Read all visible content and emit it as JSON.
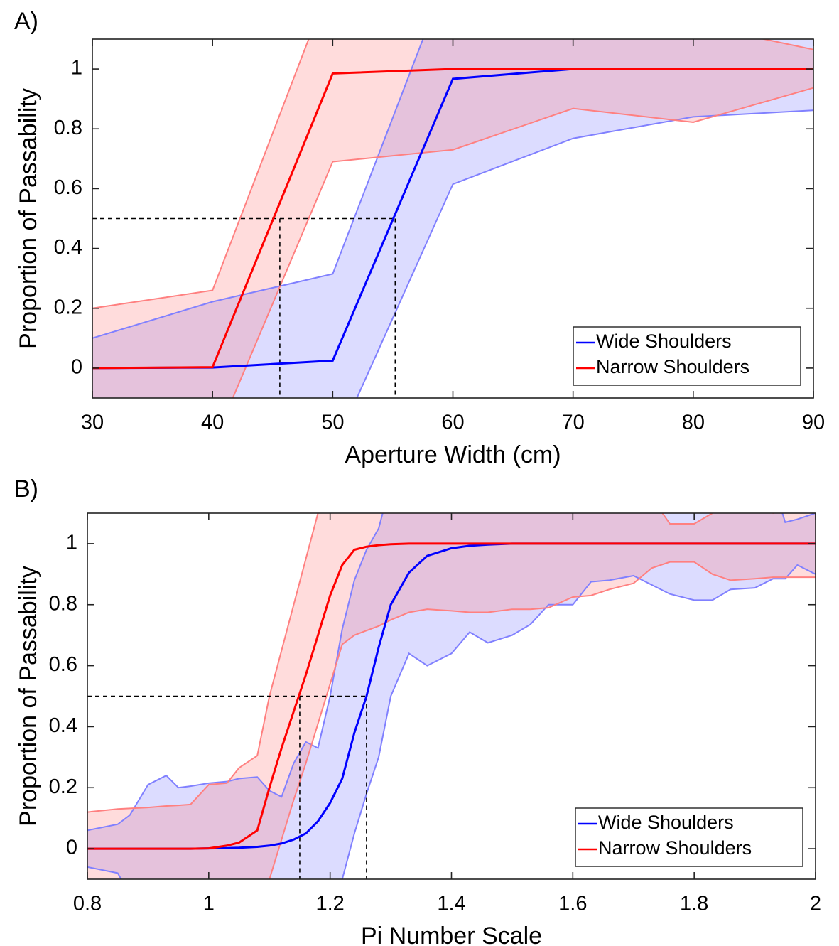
{
  "chart_data": [
    {
      "type": "line",
      "panel_label": "A)",
      "x_label": "Aperture Width (cm)",
      "y_label": "Proportion of Passability",
      "x": [
        30,
        40,
        50,
        60,
        70,
        80,
        90
      ],
      "series": [
        {
          "name": "Wide Shoulders",
          "color": "#0000ff",
          "band_color": "#8080ff",
          "values": [
            0,
            0.002,
            0.025,
            0.967,
            1,
            1,
            1
          ],
          "band_upper": [
            0.1,
            0.222,
            0.315,
            1.36,
            1.5,
            1.5,
            1.5
          ],
          "band_lower": [
            -0.3,
            -0.3,
            -0.28,
            0.615,
            0.768,
            0.84,
            0.862
          ]
        },
        {
          "name": "Narrow Shoulders",
          "color": "#ff0000",
          "band_color": "#ff8080",
          "values": [
            0,
            0.003,
            0.985,
            1,
            1,
            1,
            1
          ],
          "band_upper": [
            0.2,
            0.26,
            1.31,
            1.5,
            1.5,
            1.15,
            1.065
          ],
          "band_lower": [
            -0.4,
            -0.26,
            0.69,
            0.73,
            0.868,
            0.822,
            0.937
          ]
        }
      ],
      "reference_lines": {
        "y": 0.5,
        "x": [
          45.6,
          55.2
        ]
      },
      "xlim": [
        30,
        90
      ],
      "xticks": [
        30,
        40,
        50,
        60,
        70,
        80,
        90
      ],
      "ylim": [
        -0.1,
        1.1
      ],
      "yticks": [
        0,
        0.2,
        0.4,
        0.6,
        0.8,
        1
      ],
      "grid": false,
      "legend": "lower right"
    },
    {
      "type": "line",
      "panel_label": "B)",
      "x_label": "Pi Number Scale",
      "y_label": "Proportion of Passability",
      "x": [
        0.8,
        0.85,
        0.87,
        0.9,
        0.93,
        0.95,
        0.97,
        1.0,
        1.03,
        1.05,
        1.08,
        1.1,
        1.12,
        1.14,
        1.16,
        1.18,
        1.2,
        1.22,
        1.24,
        1.26,
        1.28,
        1.3,
        1.33,
        1.36,
        1.4,
        1.43,
        1.46,
        1.5,
        1.53,
        1.56,
        1.6,
        1.63,
        1.66,
        1.7,
        1.73,
        1.76,
        1.8,
        1.83,
        1.86,
        1.9,
        1.93,
        1.95,
        1.97,
        2.0
      ],
      "series": [
        {
          "name": "Wide Shoulders",
          "color": "#0000ff",
          "band_color": "#8080ff",
          "values": [
            0,
            0,
            0,
            0,
            0,
            0,
            0,
            0.001,
            0.002,
            0.003,
            0.006,
            0.01,
            0.017,
            0.03,
            0.05,
            0.09,
            0.15,
            0.23,
            0.38,
            0.5,
            0.66,
            0.8,
            0.905,
            0.96,
            0.985,
            0.993,
            0.997,
            1,
            1,
            1,
            1,
            1,
            1,
            1,
            1,
            1,
            1,
            1,
            1,
            1,
            1,
            1,
            1,
            1
          ],
          "band_upper": [
            0.06,
            0.08,
            0.11,
            0.21,
            0.24,
            0.2,
            0.205,
            0.215,
            0.22,
            0.23,
            0.235,
            0.19,
            0.17,
            0.28,
            0.35,
            0.33,
            0.5,
            0.72,
            0.88,
            0.98,
            1.05,
            1.2,
            1.2,
            1.2,
            1.2,
            1.2,
            1.2,
            1.2,
            1.2,
            1.2,
            1.2,
            1.2,
            1.2,
            1.2,
            1.2,
            1.2,
            1.2,
            1.2,
            1.2,
            1.2,
            1.2,
            1.07,
            1.08,
            1.1
          ],
          "band_lower": [
            -0.06,
            -0.08,
            -0.15,
            -0.15,
            -0.15,
            -0.15,
            -0.15,
            -0.15,
            -0.15,
            -0.15,
            -0.15,
            -0.15,
            -0.15,
            -0.15,
            -0.15,
            -0.15,
            -0.15,
            -0.1,
            0.05,
            0.18,
            0.3,
            0.5,
            0.64,
            0.6,
            0.64,
            0.71,
            0.675,
            0.7,
            0.735,
            0.8,
            0.8,
            0.875,
            0.88,
            0.895,
            0.865,
            0.835,
            0.815,
            0.815,
            0.85,
            0.855,
            0.885,
            0.885,
            0.93,
            0.9
          ]
        },
        {
          "name": "Narrow Shoulders",
          "color": "#ff0000",
          "band_color": "#ff8080",
          "values": [
            0,
            0,
            0,
            0,
            0,
            0,
            0,
            0.001,
            0.01,
            0.02,
            0.06,
            0.2,
            0.33,
            0.45,
            0.57,
            0.7,
            0.83,
            0.93,
            0.98,
            0.99,
            0.995,
            0.998,
            1,
            1,
            1,
            1,
            1,
            1,
            1,
            1,
            1,
            1,
            1,
            1,
            1,
            1,
            1,
            1,
            1,
            1,
            1,
            1,
            1,
            1
          ],
          "band_upper": [
            0.12,
            0.13,
            0.132,
            0.135,
            0.14,
            0.142,
            0.145,
            0.21,
            0.215,
            0.265,
            0.305,
            0.5,
            0.65,
            0.8,
            0.95,
            1.1,
            1.25,
            1.3,
            1.3,
            1.3,
            1.3,
            1.3,
            1.3,
            1.3,
            1.3,
            1.3,
            1.3,
            1.3,
            1.3,
            1.3,
            1.3,
            1.3,
            1.3,
            1.3,
            1.15,
            1.065,
            1.065,
            1.1,
            1.15,
            1.15,
            1.1,
            1.11,
            1.11,
            1.1
          ],
          "band_lower": [
            -0.15,
            -0.15,
            -0.15,
            -0.15,
            -0.15,
            -0.15,
            -0.15,
            -0.15,
            -0.15,
            -0.15,
            -0.15,
            -0.1,
            0.03,
            0.16,
            0.28,
            0.41,
            0.54,
            0.67,
            0.7,
            0.715,
            0.73,
            0.75,
            0.775,
            0.785,
            0.78,
            0.775,
            0.775,
            0.785,
            0.785,
            0.79,
            0.825,
            0.83,
            0.85,
            0.87,
            0.92,
            0.94,
            0.94,
            0.9,
            0.88,
            0.885,
            0.89,
            0.89,
            0.89,
            0.89
          ]
        }
      ],
      "reference_lines": {
        "y": 0.5,
        "x": [
          1.15,
          1.26
        ]
      },
      "xlim": [
        0.8,
        2
      ],
      "xticks": [
        0.8,
        1,
        1.2,
        1.4,
        1.6,
        1.8,
        2
      ],
      "ylim": [
        -0.1,
        1.1
      ],
      "yticks": [
        0,
        0.2,
        0.4,
        0.6,
        0.8,
        1
      ],
      "grid": false,
      "legend": "lower right"
    }
  ]
}
